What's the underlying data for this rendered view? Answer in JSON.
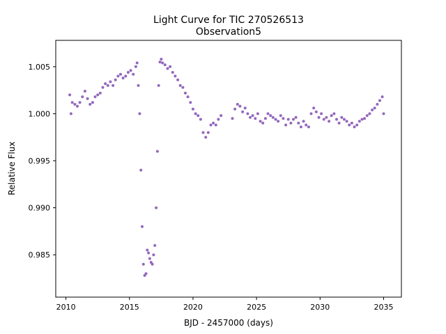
{
  "chart_data": {
    "type": "scatter",
    "title": "Light Curve for TIC 270526513",
    "subtitle": "Observation5",
    "xlabel": "BJD - 2457000 (days)",
    "ylabel": "Relative Flux",
    "xlim": [
      2009.2,
      2036.4
    ],
    "ylim": [
      0.9805,
      1.0078
    ],
    "x_ticks": [
      2010,
      2015,
      2020,
      2025,
      2030,
      2035
    ],
    "y_ticks": [
      0.985,
      0.99,
      0.995,
      1.0,
      1.005
    ],
    "y_tick_labels": [
      "0.985",
      "0.990",
      "0.995",
      "1.000",
      "1.005"
    ],
    "marker_color": "#9467bd",
    "grid": false,
    "series": [
      {
        "x": [
          2010.3,
          2010.4,
          2010.5,
          2010.7,
          2010.9,
          2011.1,
          2011.3,
          2011.5,
          2011.7,
          2011.9,
          2012.1,
          2012.3,
          2012.5,
          2012.7,
          2012.9,
          2013.1,
          2013.3,
          2013.5,
          2013.7,
          2013.9,
          2014.1,
          2014.3,
          2014.5,
          2014.7,
          2014.9,
          2015.1,
          2015.3,
          2015.5,
          2015.6,
          2015.7,
          2015.8,
          2015.9,
          2016.0,
          2016.1,
          2016.2,
          2016.3,
          2016.4,
          2016.5,
          2016.6,
          2016.7,
          2016.8,
          2016.9,
          2017.0,
          2017.1,
          2017.2,
          2017.3,
          2017.4,
          2017.5,
          2017.6,
          2017.8,
          2018.0,
          2018.2,
          2018.4,
          2018.6,
          2018.8,
          2019.0,
          2019.2,
          2019.4,
          2019.6,
          2019.8,
          2020.0,
          2020.2,
          2020.4,
          2020.6,
          2020.8,
          2021.0,
          2021.2,
          2021.4,
          2021.6,
          2021.8,
          2022.0,
          2022.2,
          2023.1,
          2023.3,
          2023.5,
          2023.7,
          2023.9,
          2024.1,
          2024.3,
          2024.5,
          2024.7,
          2024.9,
          2025.1,
          2025.3,
          2025.5,
          2025.7,
          2025.9,
          2026.1,
          2026.3,
          2026.5,
          2026.7,
          2026.9,
          2027.1,
          2027.3,
          2027.5,
          2027.7,
          2027.9,
          2028.1,
          2028.3,
          2028.5,
          2028.7,
          2028.9,
          2029.1,
          2029.3,
          2029.5,
          2029.7,
          2029.9,
          2030.1,
          2030.3,
          2030.5,
          2030.7,
          2030.9,
          2031.1,
          2031.3,
          2031.5,
          2031.7,
          2031.9,
          2032.1,
          2032.3,
          2032.5,
          2032.7,
          2032.9,
          2033.1,
          2033.3,
          2033.5,
          2033.7,
          2033.9,
          2034.1,
          2034.3,
          2034.5,
          2034.7,
          2034.9,
          2035.0
        ],
        "y": [
          1.002,
          1.0,
          1.0012,
          1.001,
          1.0008,
          1.0012,
          1.0018,
          1.0024,
          1.0016,
          1.001,
          1.0012,
          1.0018,
          1.002,
          1.0022,
          1.0028,
          1.0032,
          1.003,
          1.0034,
          1.003,
          1.0036,
          1.004,
          1.0042,
          1.0038,
          1.004,
          1.0044,
          1.0046,
          1.0042,
          1.005,
          1.0054,
          1.003,
          1.0,
          0.994,
          0.988,
          0.984,
          0.9828,
          0.983,
          0.9855,
          0.9852,
          0.9846,
          0.9842,
          0.984,
          0.985,
          0.986,
          0.99,
          0.996,
          1.003,
          1.0055,
          1.0058,
          1.0054,
          1.0052,
          1.0048,
          1.005,
          1.0044,
          1.004,
          1.0036,
          1.003,
          1.0028,
          1.0022,
          1.0018,
          1.0012,
          1.0005,
          1.0,
          0.9998,
          0.9994,
          0.998,
          0.9975,
          0.998,
          0.9988,
          0.999,
          0.9988,
          0.9994,
          0.9998,
          0.9995,
          1.0005,
          1.001,
          1.0008,
          1.0002,
          1.0006,
          1.0,
          0.9996,
          0.9998,
          0.9995,
          1.0,
          0.9992,
          0.999,
          0.9995,
          1.0,
          0.9998,
          0.9996,
          0.9994,
          0.9992,
          0.9998,
          0.9995,
          0.9988,
          0.9994,
          0.999,
          0.9994,
          0.9996,
          0.999,
          0.9986,
          0.9992,
          0.9988,
          0.9986,
          1.0,
          1.0006,
          1.0002,
          0.9996,
          1.0,
          0.9994,
          0.9996,
          0.9992,
          0.9998,
          1.0,
          0.9994,
          0.999,
          0.9996,
          0.9994,
          0.9992,
          0.9988,
          0.999,
          0.9986,
          0.9988,
          0.9992,
          0.9994,
          0.9995,
          0.9998,
          1.0,
          1.0004,
          1.0006,
          1.001,
          1.0014,
          1.0018,
          1.0
        ]
      }
    ]
  }
}
